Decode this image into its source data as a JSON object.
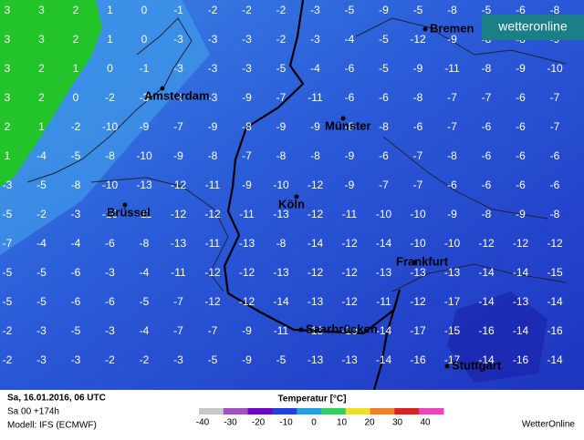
{
  "map": {
    "logo": "wetteronline",
    "cities": [
      "Bremen",
      "Amsterdam",
      "Münster",
      "Köln",
      "Brüssel",
      "Frankfurt",
      "Saarbrücken",
      "Stuttgart"
    ],
    "grid": [
      [
        3,
        3,
        2,
        1,
        0,
        -1,
        -2,
        -2,
        -2,
        -3,
        -5,
        -9,
        -5,
        -8,
        -5,
        -6,
        -8
      ],
      [
        3,
        3,
        2,
        1,
        0,
        -3,
        -3,
        -3,
        -2,
        -3,
        -4,
        -5,
        -12,
        -9,
        -8,
        -8,
        -9
      ],
      [
        3,
        2,
        1,
        0,
        -1,
        -3,
        -3,
        -3,
        -5,
        -4,
        -6,
        -5,
        -9,
        -11,
        -8,
        -9,
        -10
      ],
      [
        3,
        2,
        0,
        -2,
        -3,
        -4,
        -3,
        -9,
        -7,
        -11,
        -6,
        -6,
        -8,
        -7,
        -7,
        -6,
        -7
      ],
      [
        2,
        1,
        -2,
        -10,
        -9,
        -7,
        -9,
        -8,
        -9,
        -9,
        -8,
        -8,
        -6,
        -7,
        -6,
        -6,
        -7
      ],
      [
        1,
        -4,
        -5,
        -8,
        -10,
        -9,
        -8,
        -7,
        -8,
        -8,
        -9,
        -6,
        -7,
        -8,
        -6,
        -6,
        -6
      ],
      [
        -3,
        -5,
        -8,
        -10,
        -13,
        -12,
        -11,
        -9,
        -10,
        -12,
        -9,
        -7,
        -7,
        -6,
        -6,
        -6,
        -6
      ],
      [
        -5,
        -2,
        -3,
        -10,
        -11,
        -12,
        -12,
        -11,
        -13,
        -12,
        -11,
        -10,
        -10,
        -9,
        -8,
        -9,
        -8
      ],
      [
        -7,
        -4,
        -4,
        -6,
        -8,
        -13,
        -11,
        -13,
        -8,
        -14,
        -12,
        -14,
        -10,
        -10,
        -12,
        -12,
        -12
      ],
      [
        -5,
        -5,
        -6,
        -3,
        -4,
        -11,
        -12,
        -12,
        -13,
        -12,
        -12,
        -13,
        -13,
        -13,
        -14,
        -14,
        -15
      ],
      [
        -5,
        -5,
        -6,
        -6,
        -5,
        -7,
        -12,
        -12,
        -14,
        -13,
        -12,
        -11,
        -12,
        -17,
        -14,
        -13,
        -14
      ],
      [
        -2,
        -3,
        -5,
        -3,
        -4,
        -7,
        -7,
        -9,
        -11,
        -13,
        -10,
        -14,
        -17,
        -15,
        -16,
        -14,
        -16
      ],
      [
        -2,
        -3,
        -3,
        -2,
        -2,
        -3,
        -5,
        -9,
        -5,
        -13,
        -13,
        -14,
        -16,
        -17,
        -14,
        -16,
        -14
      ]
    ]
  },
  "footer": {
    "date": "Sa, 16.01.2016, 06 UTC",
    "run": "Sa 00 +174h",
    "model": "Modell: IFS (ECMWF)",
    "legend_title": "Temperatur [°C]",
    "brand": "WetterOnline",
    "scale_ticks": [
      -40,
      -30,
      -20,
      -10,
      0,
      10,
      20,
      30,
      40
    ],
    "scale_colors": [
      "#c8c8c8",
      "#a050c0",
      "#7000d0",
      "#2040e0",
      "#20a0e0",
      "#30d060",
      "#f0e020",
      "#f08020",
      "#e02020",
      "#f040c0"
    ]
  }
}
